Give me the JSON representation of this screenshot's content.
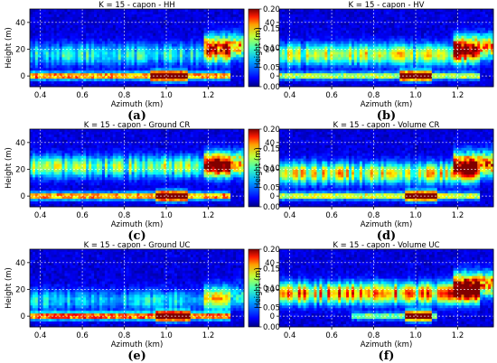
{
  "chart_data": [
    {
      "type": "heatmap",
      "title": "K = 15 - capon - HH",
      "caption": "(a)",
      "xlabel": "Azimuth (km)",
      "ylabel": "Height (m)",
      "xlim": [
        0.35,
        1.37
      ],
      "ylim": [
        -8,
        50
      ],
      "xticks": [
        0.4,
        0.6,
        0.8,
        1.0,
        1.2
      ],
      "xtick_labels": [
        "0.4",
        "0.6",
        "0.8",
        "1.0",
        "1.2"
      ],
      "yticks": [
        0,
        20,
        40
      ],
      "ytick_labels": [
        "0",
        "20",
        "40"
      ],
      "colorbar": {
        "min": 0.0,
        "max": 0.2,
        "ticks": [
          "0.00",
          "0.05",
          "0.10",
          "0.15",
          "0.20"
        ],
        "colormap": "jet"
      },
      "grid": true,
      "features": [
        {
          "kind": "ground",
          "x": [
            0.35,
            1.3
          ],
          "height_m": 0,
          "strength": 0.17
        },
        {
          "kind": "ground-hot",
          "x": [
            0.93,
            1.1
          ],
          "height_m": 0,
          "strength": 0.2
        },
        {
          "kind": "canopy",
          "x": [
            0.35,
            1.3
          ],
          "height_m": 16,
          "strength": 0.06
        },
        {
          "kind": "forest",
          "x": [
            1.18,
            1.37
          ],
          "height_m": 22,
          "strength": 0.14
        }
      ]
    },
    {
      "type": "heatmap",
      "title": "K = 15 - capon - HV",
      "caption": "(b)",
      "xlabel": "Azimuth (km)",
      "ylabel": "Height (m)",
      "xlim": [
        0.35,
        1.37
      ],
      "ylim": [
        -8,
        50
      ],
      "xticks": [
        0.4,
        0.6,
        0.8,
        1.0,
        1.2
      ],
      "xtick_labels": [
        "0.4",
        "0.6",
        "0.8",
        "1.0",
        "1.2"
      ],
      "yticks": [
        0,
        20,
        40
      ],
      "ytick_labels": [
        "0",
        "20",
        "40"
      ],
      "colorbar": {
        "min": 0.0,
        "max": 0.2,
        "ticks": [
          "0.00",
          "0.05",
          "0.10",
          "0.15",
          "0.20"
        ],
        "colormap": "jet"
      },
      "grid": true,
      "features": [
        {
          "kind": "ground",
          "x": [
            0.35,
            1.3
          ],
          "height_m": 0,
          "strength": 0.12
        },
        {
          "kind": "ground-hot",
          "x": [
            0.93,
            1.08
          ],
          "height_m": 0,
          "strength": 0.2
        },
        {
          "kind": "canopy",
          "x": [
            0.35,
            1.3
          ],
          "height_m": 16,
          "strength": 0.09
        },
        {
          "kind": "forest",
          "x": [
            1.18,
            1.37
          ],
          "height_m": 22,
          "strength": 0.15
        }
      ]
    },
    {
      "type": "heatmap",
      "title": "K = 15 - capon - Ground CR",
      "caption": "(c)",
      "xlabel": "Azimuth (km)",
      "ylabel": "Height (m)",
      "xlim": [
        0.35,
        1.37
      ],
      "ylim": [
        -8,
        50
      ],
      "xticks": [
        0.4,
        0.6,
        0.8,
        1.0,
        1.2
      ],
      "xtick_labels": [
        "0.4",
        "0.6",
        "0.8",
        "1.0",
        "1.2"
      ],
      "yticks": [
        0,
        20,
        40
      ],
      "ytick_labels": [
        "0",
        "20",
        "40"
      ],
      "colorbar": {
        "min": 0.0,
        "max": 0.2,
        "ticks": [
          "0.00",
          "0.05",
          "0.10",
          "0.15",
          "0.20"
        ],
        "colormap": "jet"
      },
      "grid": true,
      "features": [
        {
          "kind": "ground",
          "x": [
            0.35,
            1.3
          ],
          "height_m": 0,
          "strength": 0.17
        },
        {
          "kind": "ground-hot",
          "x": [
            0.95,
            1.1
          ],
          "height_m": 0,
          "strength": 0.2
        },
        {
          "kind": "canopy",
          "x": [
            0.35,
            1.3
          ],
          "height_m": 22,
          "strength": 0.08
        },
        {
          "kind": "forest",
          "x": [
            1.18,
            1.37
          ],
          "height_m": 24,
          "strength": 0.15
        }
      ]
    },
    {
      "type": "heatmap",
      "title": "K = 15 - capon - Volume CR",
      "caption": "(d)",
      "xlabel": "Azimuth (km)",
      "ylabel": "Height (m)",
      "xlim": [
        0.35,
        1.37
      ],
      "ylim": [
        -8,
        50
      ],
      "xticks": [
        0.4,
        0.6,
        0.8,
        1.0,
        1.2
      ],
      "xtick_labels": [
        "0.4",
        "0.6",
        "0.8",
        "1.0",
        "1.2"
      ],
      "yticks": [
        0,
        20,
        40
      ],
      "ytick_labels": [
        "0",
        "20",
        "40"
      ],
      "colorbar": {
        "min": 0.0,
        "max": 0.2,
        "ticks": [
          "0.00",
          "0.05",
          "0.10",
          "0.15",
          "0.20"
        ],
        "colormap": "jet"
      },
      "grid": true,
      "features": [
        {
          "kind": "ground",
          "x": [
            0.35,
            1.3
          ],
          "height_m": 0,
          "strength": 0.13
        },
        {
          "kind": "ground-hot",
          "x": [
            0.95,
            1.1
          ],
          "height_m": 0,
          "strength": 0.2
        },
        {
          "kind": "canopy",
          "x": [
            0.35,
            1.3
          ],
          "height_m": 17,
          "strength": 0.1
        },
        {
          "kind": "forest",
          "x": [
            1.18,
            1.37
          ],
          "height_m": 24,
          "strength": 0.17
        }
      ]
    },
    {
      "type": "heatmap",
      "title": "K = 15 - capon - Ground UC",
      "caption": "(e)",
      "xlabel": "Azimuth (km)",
      "ylabel": "Height (m)",
      "xlim": [
        0.35,
        1.37
      ],
      "ylim": [
        -8,
        50
      ],
      "xticks": [
        0.4,
        0.6,
        0.8,
        1.0,
        1.2
      ],
      "xtick_labels": [
        "0.4",
        "0.6",
        "0.8",
        "1.0",
        "1.2"
      ],
      "yticks": [
        0,
        20,
        40
      ],
      "ytick_labels": [
        "0",
        "20",
        "40"
      ],
      "colorbar": {
        "min": 0.0,
        "max": 0.2,
        "ticks": [
          "0.00",
          "0.05",
          "0.10",
          "0.15",
          "0.20"
        ],
        "colormap": "jet"
      },
      "grid": true,
      "features": [
        {
          "kind": "ground",
          "x": [
            0.35,
            1.3
          ],
          "height_m": 0,
          "strength": 0.18
        },
        {
          "kind": "ground-hot",
          "x": [
            0.95,
            1.12
          ],
          "height_m": 0,
          "strength": 0.2
        },
        {
          "kind": "canopy",
          "x": [
            0.35,
            1.3
          ],
          "height_m": 12,
          "strength": 0.05
        },
        {
          "kind": "forest",
          "x": [
            1.18,
            1.37
          ],
          "height_m": 15,
          "strength": 0.07
        }
      ]
    },
    {
      "type": "heatmap",
      "title": "K = 15 - capon - Volume UC",
      "caption": "(f)",
      "xlabel": "Azimuth (km)",
      "ylabel": "Height (m)",
      "xlim": [
        0.35,
        1.37
      ],
      "ylim": [
        -8,
        50
      ],
      "xticks": [
        0.4,
        0.6,
        0.8,
        1.0,
        1.2
      ],
      "xtick_labels": [
        "0.4",
        "0.6",
        "0.8",
        "1.0",
        "1.2"
      ],
      "yticks": [
        0,
        20,
        40
      ],
      "ytick_labels": [
        "0",
        "20",
        "40"
      ],
      "colorbar": {
        "min": 0.0,
        "max": 0.2,
        "ticks": [
          "0.00",
          "0.05",
          "0.10",
          "0.15",
          "0.20"
        ],
        "colormap": "jet"
      },
      "grid": true,
      "features": [
        {
          "kind": "ground",
          "x": [
            0.7,
            1.1
          ],
          "height_m": 0,
          "strength": 0.1
        },
        {
          "kind": "ground-hot",
          "x": [
            0.95,
            1.08
          ],
          "height_m": 0,
          "strength": 0.2
        },
        {
          "kind": "canopy",
          "x": [
            0.35,
            1.3
          ],
          "height_m": 17,
          "strength": 0.12
        },
        {
          "kind": "forest",
          "x": [
            1.18,
            1.37
          ],
          "height_m": 24,
          "strength": 0.16
        }
      ]
    }
  ]
}
